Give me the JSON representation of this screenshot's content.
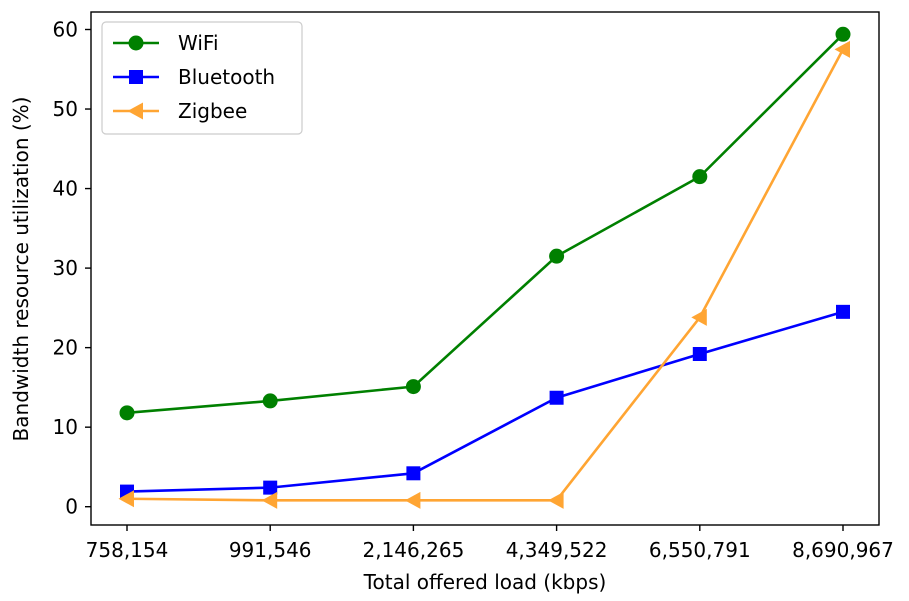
{
  "chart_data": {
    "type": "line",
    "title": "",
    "xlabel": "Total offered load (kbps)",
    "ylabel": "Bandwidth resource utilization (%)",
    "categories": [
      "758,154",
      "991,546",
      "2,146,265",
      "4,349,522",
      "6,550,791",
      "8,690,967"
    ],
    "ylim": [
      -2.3,
      62.2
    ],
    "yticks": [
      0,
      10,
      20,
      30,
      40,
      50,
      60
    ],
    "grid": false,
    "legend_position": "top-left",
    "series": [
      {
        "name": "WiFi",
        "color": "#008000",
        "marker": "circle",
        "values": [
          11.8,
          13.3,
          15.1,
          31.5,
          41.5,
          59.4
        ]
      },
      {
        "name": "Bluetooth",
        "color": "#0000ff",
        "marker": "square",
        "values": [
          1.9,
          2.4,
          4.2,
          13.7,
          19.2,
          24.5
        ]
      },
      {
        "name": "Zigbee",
        "color": "#ffa533",
        "marker": "triangle-left",
        "values": [
          1.0,
          0.8,
          0.8,
          0.8,
          23.8,
          57.5
        ]
      }
    ]
  }
}
